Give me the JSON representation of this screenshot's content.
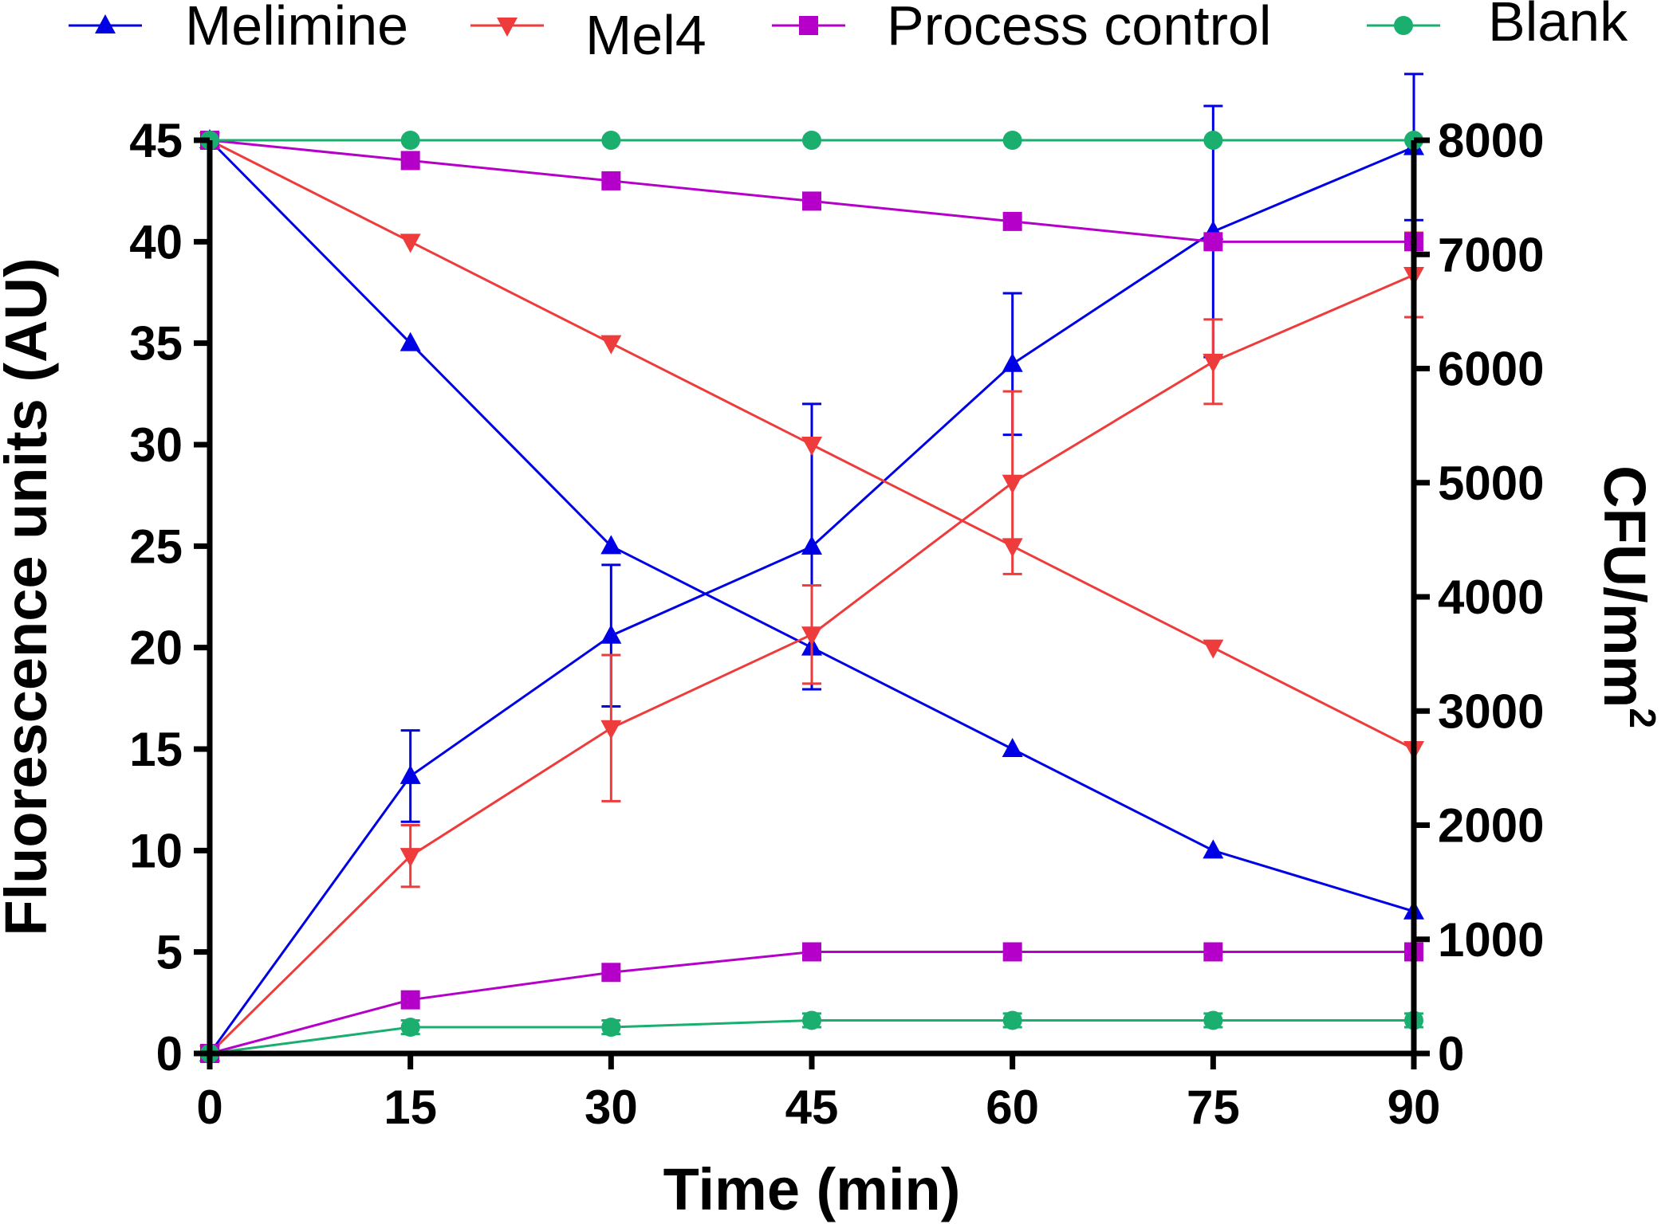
{
  "chart_data": {
    "type": "line",
    "title": "",
    "xlabel": "Time (min)",
    "ylabel_left": "Fluorescence units (AU)",
    "ylabel_right_base": "CFU/mm",
    "ylabel_right_sup": "2",
    "x": [
      0,
      15,
      30,
      45,
      60,
      75,
      90
    ],
    "xlim": [
      0,
      90
    ],
    "ylim_left": [
      0,
      45
    ],
    "ylim_right": [
      0,
      8000
    ],
    "x_ticks": [
      "0",
      "15",
      "30",
      "45",
      "60",
      "75",
      "90"
    ],
    "y_left_ticks": [
      "0",
      "5",
      "10",
      "15",
      "20",
      "25",
      "30",
      "35",
      "40",
      "45"
    ],
    "y_right_ticks": [
      "0",
      "1000",
      "2000",
      "3000",
      "4000",
      "5000",
      "6000",
      "7000",
      "8000"
    ],
    "series": [
      {
        "name": "Melimine",
        "color": "#0000e6",
        "marker": "triangle-up",
        "fluorescence": [
          45,
          35,
          25,
          20,
          15,
          10,
          7
        ],
        "cfu": [
          0,
          2430,
          3660,
          4440,
          6040,
          7200,
          7940
        ],
        "cfu_error": [
          0,
          400,
          620,
          1250,
          620,
          1100,
          640
        ]
      },
      {
        "name": "Mel4",
        "color": "#ee3b3b",
        "marker": "triangle-down",
        "fluorescence": [
          45,
          40,
          35,
          30,
          25,
          20,
          15
        ],
        "cfu": [
          0,
          1730,
          2850,
          3670,
          5000,
          6060,
          6820
        ],
        "cfu_error": [
          0,
          270,
          640,
          430,
          800,
          370,
          370
        ]
      },
      {
        "name": "Process control",
        "color": "#b400c8",
        "marker": "square",
        "fluorescence": [
          45,
          44,
          43,
          42,
          41,
          40,
          40
        ],
        "cfu": [
          0,
          470,
          710,
          890,
          890,
          890,
          890
        ],
        "cfu_error": [
          0,
          0,
          0,
          0,
          0,
          0,
          0
        ]
      },
      {
        "name": "Blank",
        "color": "#1aae6f",
        "marker": "circle",
        "fluorescence": [
          45,
          45,
          45,
          45,
          45,
          45,
          45
        ],
        "cfu": [
          0,
          230,
          230,
          290,
          290,
          290,
          290
        ],
        "cfu_error": [
          0,
          60,
          60,
          60,
          60,
          60,
          60
        ]
      }
    ],
    "legend_position": "top"
  }
}
